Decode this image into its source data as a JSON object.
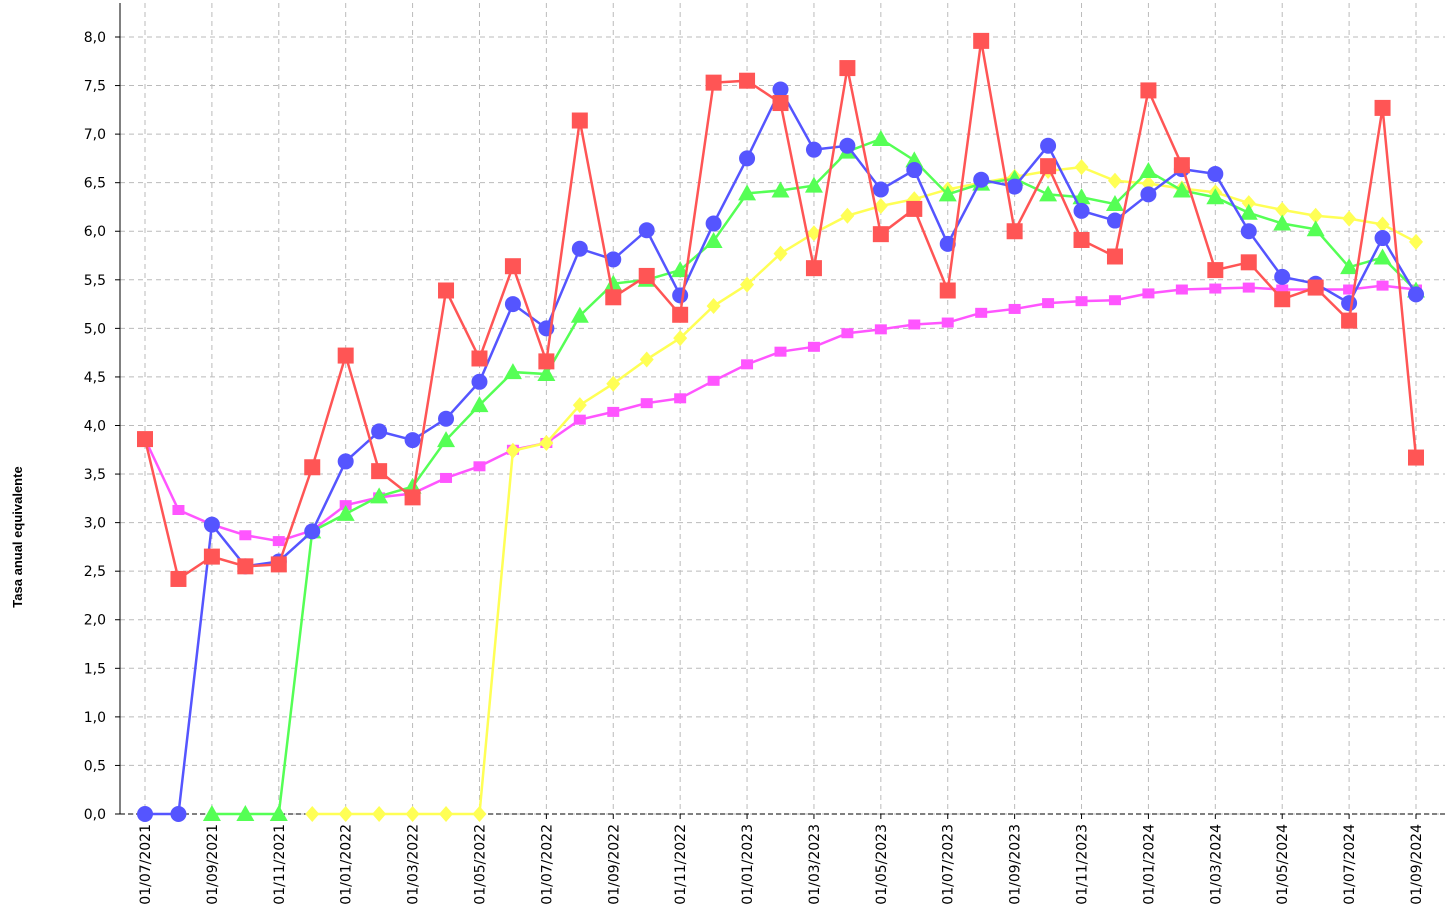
{
  "chart_data": {
    "type": "line",
    "y_label": "Tasa anual equivalente",
    "categories": [
      "01/07/2021",
      null,
      "01/09/2021",
      null,
      "01/11/2021",
      null,
      "01/01/2022",
      null,
      "01/03/2022",
      null,
      "01/05/2022",
      null,
      "01/07/2022",
      null,
      "01/09/2022",
      null,
      "01/11/2022",
      null,
      "01/01/2023",
      null,
      "01/03/2023",
      null,
      "01/05/2023",
      null,
      "01/07/2023",
      null,
      "01/09/2023",
      null,
      "01/11/2023",
      null,
      "01/01/2024",
      null,
      "01/03/2024",
      null,
      "01/05/2024",
      null,
      "01/07/2024",
      null,
      "01/09/2024"
    ],
    "ylim": [
      0,
      8.35
    ],
    "yticks": [
      {
        "value": 0,
        "label": "0,0"
      },
      {
        "value": 0.5,
        "label": "0,5"
      },
      {
        "value": 1,
        "label": "1,0"
      },
      {
        "value": 1.5,
        "label": "1,5"
      },
      {
        "value": 2,
        "label": "2,0"
      },
      {
        "value": 2.5,
        "label": "2,5"
      },
      {
        "value": 3,
        "label": "3,0"
      },
      {
        "value": 3.5,
        "label": "3,5"
      },
      {
        "value": 4,
        "label": "4,0"
      },
      {
        "value": 4.5,
        "label": "4,5"
      },
      {
        "value": 5,
        "label": "5,0"
      },
      {
        "value": 5.5,
        "label": "5,5"
      },
      {
        "value": 6,
        "label": "6,0"
      },
      {
        "value": 6.5,
        "label": "6,5"
      },
      {
        "value": 7,
        "label": "7,0"
      },
      {
        "value": 7.5,
        "label": "7,5"
      },
      {
        "value": 8,
        "label": "8,0"
      }
    ],
    "grid": true,
    "series": [
      {
        "color": "#ff55ff",
        "marker": "small-square",
        "values": [
          3.86,
          3.13,
          2.98,
          2.87,
          2.81,
          2.92,
          3.18,
          3.26,
          3.3,
          3.46,
          3.58,
          3.75,
          3.82,
          4.06,
          4.14,
          4.23,
          4.28,
          4.46,
          4.63,
          4.76,
          4.81,
          4.95,
          4.99,
          5.04,
          5.06,
          5.16,
          5.2,
          5.26,
          5.28,
          5.29,
          5.36,
          5.4,
          5.41,
          5.42,
          5.4,
          5.4,
          5.4,
          5.44,
          5.4
        ]
      },
      {
        "color": "#ffff55",
        "marker": "diamond",
        "values": [
          null,
          null,
          null,
          null,
          null,
          0,
          0,
          0,
          0,
          0,
          0,
          3.74,
          3.82,
          4.21,
          4.43,
          4.68,
          4.9,
          5.23,
          5.45,
          5.77,
          5.98,
          6.16,
          6.26,
          6.33,
          6.43,
          6.5,
          6.56,
          6.62,
          6.66,
          6.52,
          6.49,
          6.44,
          6.4,
          6.29,
          6.22,
          6.16,
          6.13,
          6.07,
          5.89
        ]
      },
      {
        "color": "#55ff55",
        "marker": "triangle",
        "values": [
          null,
          null,
          0,
          0,
          0,
          2.91,
          3.09,
          3.27,
          3.37,
          3.85,
          4.21,
          4.55,
          4.53,
          5.13,
          5.46,
          5.5,
          5.6,
          5.9,
          6.39,
          6.42,
          6.47,
          6.82,
          6.95,
          6.73,
          6.38,
          6.49,
          6.54,
          6.38,
          6.35,
          6.28,
          6.62,
          6.42,
          6.35,
          6.19,
          6.08,
          6.02,
          5.63,
          5.73,
          5.39
        ]
      },
      {
        "color": "#5555ff",
        "marker": "circle",
        "values": [
          0,
          0,
          2.98,
          2.55,
          2.6,
          2.91,
          3.63,
          3.94,
          3.85,
          4.07,
          4.45,
          5.25,
          5.0,
          5.82,
          5.71,
          6.01,
          5.34,
          6.08,
          6.75,
          7.46,
          6.84,
          6.88,
          6.43,
          6.63,
          5.87,
          6.53,
          6.46,
          6.88,
          6.21,
          6.11,
          6.38,
          6.64,
          6.59,
          6.0,
          5.53,
          5.46,
          5.26,
          5.93,
          5.35
        ]
      },
      {
        "color": "#ff5555",
        "marker": "square",
        "values": [
          3.86,
          2.42,
          2.65,
          2.55,
          2.57,
          3.57,
          4.72,
          3.53,
          3.26,
          5.39,
          4.69,
          5.64,
          4.66,
          7.14,
          5.32,
          5.54,
          5.14,
          7.53,
          7.55,
          7.32,
          5.62,
          7.68,
          5.97,
          6.23,
          5.39,
          7.96,
          6.0,
          6.67,
          5.91,
          5.74,
          7.45,
          6.68,
          5.6,
          5.68,
          5.3,
          5.42,
          5.08,
          7.27,
          3.67
        ]
      }
    ]
  }
}
